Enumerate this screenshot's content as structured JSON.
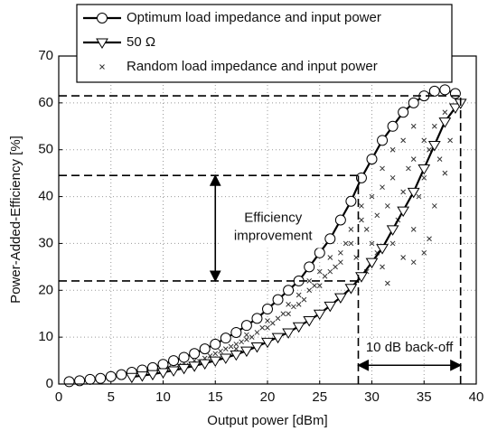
{
  "chart_data": {
    "type": "line",
    "xlabel": "Output power  [dBm]",
    "ylabel": "Power-Added-Efficiency  [%]",
    "xlim": [
      0,
      40
    ],
    "xticks": [
      0,
      5,
      10,
      15,
      20,
      25,
      30,
      35,
      40
    ],
    "ylim": [
      0,
      70
    ],
    "yticks": [
      0,
      10,
      20,
      30,
      40,
      50,
      60,
      70
    ],
    "grid": true,
    "legend": "top",
    "series": [
      {
        "name": "Optimum load impedance and input power",
        "color": "#000000",
        "marker": "circle",
        "line": true,
        "x": [
          1,
          2,
          3,
          4,
          5,
          6,
          7,
          8,
          9,
          10,
          11,
          12,
          13,
          14,
          15,
          16,
          17,
          18,
          19,
          20,
          21,
          22,
          23,
          24,
          25,
          26,
          27,
          28,
          29,
          30,
          31,
          32,
          33,
          34,
          35,
          36,
          37,
          38
        ],
        "values": [
          0.5,
          0.7,
          1,
          1.2,
          1.6,
          2,
          2.5,
          3,
          3.5,
          4.2,
          5,
          5.7,
          6.5,
          7.5,
          8.5,
          9.8,
          11,
          12.5,
          14,
          16,
          18,
          20,
          22,
          25,
          28,
          31,
          35,
          39,
          44,
          48,
          52,
          55,
          58,
          60,
          61.5,
          62.5,
          62.8,
          62
        ]
      },
      {
        "name": "50 Ω",
        "color": "#000000",
        "marker": "triangle",
        "line": true,
        "x": [
          7,
          8,
          9,
          10,
          11,
          12,
          13,
          14,
          15,
          16,
          17,
          18,
          19,
          20,
          21,
          22,
          23,
          24,
          25,
          26,
          27,
          28,
          29,
          30,
          31,
          32,
          33,
          34,
          35,
          36,
          37,
          38,
          38.5
        ],
        "values": [
          1.5,
          1.8,
          2.1,
          2.5,
          2.9,
          3.4,
          3.9,
          4.4,
          5,
          5.6,
          6.3,
          7.1,
          8,
          9,
          10,
          11,
          12.3,
          13.6,
          15,
          16.7,
          18.5,
          20.5,
          23,
          26,
          29,
          33,
          37,
          41,
          46,
          51,
          56,
          59,
          60
        ]
      },
      {
        "name": "Random load impedance and input power",
        "color": "#333333",
        "marker": "x",
        "line": false,
        "x": [
          8,
          9,
          10,
          10.5,
          11,
          11.5,
          12,
          12.5,
          13,
          13.5,
          14,
          14.5,
          15,
          15.5,
          16,
          16.5,
          17,
          17,
          17.5,
          18,
          18,
          18.5,
          19,
          19.5,
          20,
          20,
          20.5,
          21,
          21.5,
          22,
          22,
          22.5,
          23,
          23,
          23.5,
          24,
          24,
          24.5,
          25,
          25,
          25.5,
          26,
          26,
          26.5,
          27,
          27,
          27.5,
          28,
          28,
          28.5,
          29,
          29,
          29.5,
          30,
          30,
          30.5,
          31,
          31,
          31,
          31.5,
          32,
          32,
          32,
          32.5,
          33,
          33,
          33,
          33.5,
          34,
          34,
          34,
          34.5,
          35,
          35,
          35,
          35.5,
          36,
          36,
          36.5,
          37,
          37,
          37.5,
          31.5,
          30.5,
          29.5,
          34,
          35.5
        ],
        "values": [
          2,
          2.5,
          3,
          3.5,
          3.2,
          4,
          4.5,
          4,
          5,
          4.8,
          5.5,
          6,
          6.5,
          7,
          7.5,
          8,
          8.5,
          7.5,
          9,
          9.5,
          10.5,
          10,
          11,
          12,
          12,
          13.5,
          13,
          14,
          15,
          15,
          17,
          16.5,
          17,
          19,
          18,
          20,
          22,
          21,
          21,
          24,
          23,
          24,
          27,
          25,
          28,
          26,
          30,
          30,
          33,
          27,
          35,
          38,
          33,
          30,
          40,
          36,
          25,
          42,
          46,
          38,
          30,
          44,
          50,
          35,
          27,
          41,
          52,
          46,
          33,
          48,
          55,
          40,
          28,
          44,
          52,
          50,
          38,
          55,
          48,
          58,
          45,
          52,
          21.5,
          28,
          24,
          26,
          31
        ]
      }
    ],
    "dashed_lines": [
      {
        "x": [
          0,
          38.5
        ],
        "y": [
          61.5,
          61.5
        ]
      },
      {
        "x": [
          0,
          28.7
        ],
        "y": [
          44.5,
          44.5
        ]
      },
      {
        "x": [
          0,
          28.7
        ],
        "y": [
          22,
          22
        ]
      },
      {
        "x": [
          28.7,
          28.7
        ],
        "y": [
          0,
          44.5
        ]
      },
      {
        "x": [
          38.5,
          38.5
        ],
        "y": [
          0,
          61.5
        ]
      }
    ],
    "arrows": [
      {
        "x": [
          15,
          15
        ],
        "y": [
          22,
          44.5
        ]
      },
      {
        "x": [
          28.7,
          38.5
        ],
        "y": [
          4,
          4
        ]
      }
    ],
    "annotations": [
      "Efficiency",
      "improvement",
      "10 dB back-off"
    ]
  }
}
